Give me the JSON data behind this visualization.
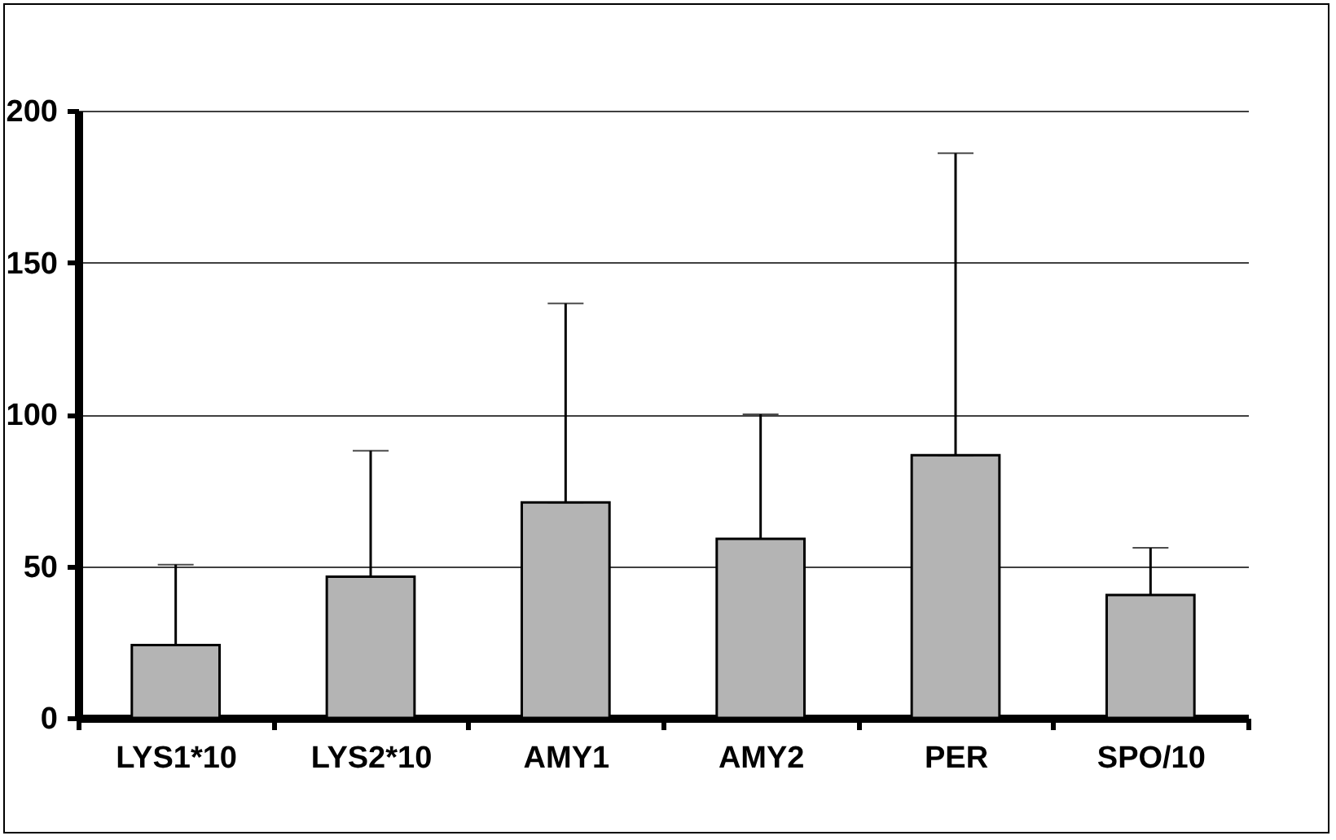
{
  "chart_data": {
    "type": "bar",
    "categories": [
      "LYS1*10",
      "LYS2*10",
      "AMY1",
      "AMY2",
      "PER",
      "SPO/10"
    ],
    "values": [
      24,
      46.5,
      71,
      59,
      86.5,
      40.5
    ],
    "errors": [
      [
        24,
        50.5
      ],
      [
        46.5,
        88
      ],
      [
        71,
        136.5
      ],
      [
        59,
        100
      ],
      [
        86.5,
        186
      ],
      [
        40.5,
        56
      ]
    ],
    "color": "#b4b4b4",
    "ylim": [
      0,
      200
    ],
    "yticks": [
      0,
      50,
      100,
      150,
      200
    ],
    "grid": "y"
  }
}
